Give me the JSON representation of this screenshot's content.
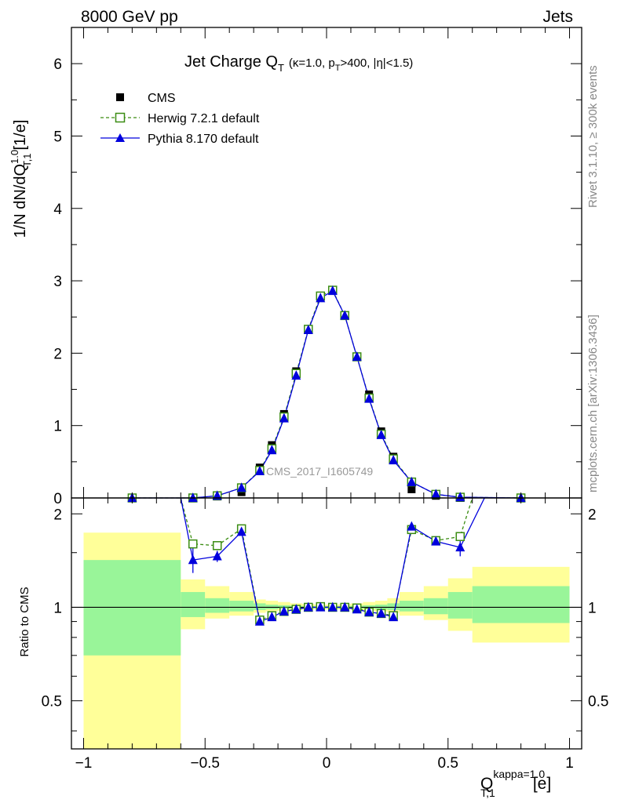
{
  "header": {
    "left": "8000 GeV pp",
    "right": "Jets"
  },
  "side_labels": {
    "rivet": "Rivet 3.1.10, ≥ 300k events",
    "mcplots": "mcplots.cern.ch [arXiv:1306.3436]"
  },
  "watermark": "CMS_2017_I1605749",
  "title": {
    "main": "Jet Charge Q",
    "main_sub": "T",
    "params_pre": "(κ=1.0, p",
    "params_sub": "T",
    "params_post": ">400, |η|<1.5)"
  },
  "axis_labels": {
    "y_main_prefix": "1/N dN/dQ",
    "y_main_sup": "1.0",
    "y_main_sub": "T,1",
    "y_main_suffix": "[1/e]",
    "y_ratio": "Ratio to CMS",
    "x_main": "Q",
    "x_sup": "kappa=1.0",
    "x_sub": "T,1",
    "x_unit": "[e]"
  },
  "legend": {
    "placement": "top-left",
    "entries": [
      {
        "label": "CMS",
        "marker": "filled-square"
      },
      {
        "label": "Herwig 7.2.1 default",
        "marker": "open-square-dashed"
      },
      {
        "label": "Pythia 8.170 default",
        "marker": "filled-triangle"
      }
    ]
  },
  "colors": {
    "cms": "#000000",
    "herwig": "#3a8c12",
    "pythia": "#0000dd",
    "band_inner": "#99f599",
    "band_outer": "#ffff99"
  },
  "chart_data": {
    "type": "line",
    "xlim": [
      -1.05,
      1.05
    ],
    "xticks": [
      "−1",
      "−0.5",
      "0",
      "0.5",
      "1"
    ],
    "xtick_values": [
      -1,
      -0.5,
      0,
      0.5,
      1
    ],
    "main": {
      "ylim": [
        0,
        6.5
      ],
      "yticks": [
        0,
        1,
        2,
        3,
        4,
        5,
        6
      ],
      "series": [
        {
          "name": "CMS",
          "x": [
            -0.8,
            -0.55,
            -0.45,
            -0.35,
            -0.275,
            -0.225,
            -0.175,
            -0.125,
            -0.075,
            -0.025,
            0.025,
            0.075,
            0.125,
            0.175,
            0.225,
            0.275,
            0.35,
            0.45,
            0.55,
            0.8
          ],
          "y": [
            0.0,
            0.0,
            0.02,
            0.08,
            0.42,
            0.73,
            1.16,
            1.75,
            2.33,
            2.78,
            2.87,
            2.52,
            1.95,
            1.43,
            0.92,
            0.57,
            0.12,
            0.03,
            0.0,
            0.0
          ]
        },
        {
          "name": "Herwig 7.2.1 default",
          "x": [
            -0.8,
            -0.55,
            -0.45,
            -0.35,
            -0.275,
            -0.225,
            -0.175,
            -0.125,
            -0.075,
            -0.025,
            0.025,
            0.075,
            0.125,
            0.175,
            0.225,
            0.275,
            0.35,
            0.45,
            0.55,
            0.8
          ],
          "y": [
            0.0,
            0.0,
            0.03,
            0.14,
            0.38,
            0.68,
            1.12,
            1.72,
            2.33,
            2.79,
            2.87,
            2.52,
            1.95,
            1.38,
            0.88,
            0.54,
            0.22,
            0.05,
            0.01,
            0.0
          ]
        },
        {
          "name": "Pythia 8.170 default",
          "x": [
            -0.8,
            -0.55,
            -0.45,
            -0.35,
            -0.275,
            -0.225,
            -0.175,
            -0.125,
            -0.075,
            -0.025,
            0.025,
            0.075,
            0.125,
            0.175,
            0.225,
            0.275,
            0.35,
            0.45,
            0.55,
            0.8
          ],
          "y": [
            0.0,
            0.0,
            0.03,
            0.14,
            0.37,
            0.66,
            1.1,
            1.69,
            2.32,
            2.76,
            2.86,
            2.52,
            1.95,
            1.37,
            0.87,
            0.52,
            0.22,
            0.05,
            0.01,
            0.0
          ]
        }
      ]
    },
    "ratio": {
      "ylim": [
        0.35,
        2.25
      ],
      "yticks": [
        0.5,
        1,
        2
      ],
      "ytick_labels": [
        "0.5",
        "1",
        "2"
      ],
      "reference": 1.0,
      "bands": [
        {
          "x0": -1.0,
          "x1": -0.6,
          "inner": [
            0.7,
            1.42
          ],
          "outer": [
            0.35,
            1.74
          ]
        },
        {
          "x0": -0.6,
          "x1": -0.5,
          "inner": [
            0.93,
            1.12
          ],
          "outer": [
            0.85,
            1.23
          ]
        },
        {
          "x0": -0.5,
          "x1": -0.4,
          "inner": [
            0.96,
            1.07
          ],
          "outer": [
            0.92,
            1.17
          ]
        },
        {
          "x0": -0.4,
          "x1": -0.3,
          "inner": [
            0.97,
            1.05
          ],
          "outer": [
            0.94,
            1.12
          ]
        },
        {
          "x0": -0.3,
          "x1": -0.25,
          "inner": [
            0.98,
            1.03
          ],
          "outer": [
            0.96,
            1.06
          ]
        },
        {
          "x0": -0.25,
          "x1": -0.2,
          "inner": [
            0.985,
            1.02
          ],
          "outer": [
            0.97,
            1.05
          ]
        },
        {
          "x0": -0.2,
          "x1": -0.15,
          "inner": [
            0.99,
            1.015
          ],
          "outer": [
            0.975,
            1.04
          ]
        },
        {
          "x0": -0.15,
          "x1": -0.1,
          "inner": [
            0.99,
            1.012
          ],
          "outer": [
            0.98,
            1.03
          ]
        },
        {
          "x0": -0.1,
          "x1": -0.05,
          "inner": [
            0.992,
            1.01
          ],
          "outer": [
            0.985,
            1.025
          ]
        },
        {
          "x0": -0.05,
          "x1": 0.0,
          "inner": [
            0.993,
            1.008
          ],
          "outer": [
            0.987,
            1.02
          ]
        },
        {
          "x0": 0.0,
          "x1": 0.05,
          "inner": [
            0.993,
            1.008
          ],
          "outer": [
            0.987,
            1.02
          ]
        },
        {
          "x0": 0.05,
          "x1": 0.1,
          "inner": [
            0.992,
            1.01
          ],
          "outer": [
            0.985,
            1.025
          ]
        },
        {
          "x0": 0.1,
          "x1": 0.15,
          "inner": [
            0.99,
            1.012
          ],
          "outer": [
            0.98,
            1.03
          ]
        },
        {
          "x0": 0.15,
          "x1": 0.2,
          "inner": [
            0.99,
            1.015
          ],
          "outer": [
            0.975,
            1.04
          ]
        },
        {
          "x0": 0.2,
          "x1": 0.25,
          "inner": [
            0.985,
            1.02
          ],
          "outer": [
            0.97,
            1.05
          ]
        },
        {
          "x0": 0.25,
          "x1": 0.3,
          "inner": [
            0.98,
            1.03
          ],
          "outer": [
            0.96,
            1.07
          ]
        },
        {
          "x0": 0.3,
          "x1": 0.4,
          "inner": [
            0.97,
            1.05
          ],
          "outer": [
            0.94,
            1.12
          ]
        },
        {
          "x0": 0.4,
          "x1": 0.5,
          "inner": [
            0.95,
            1.07
          ],
          "outer": [
            0.91,
            1.17
          ]
        },
        {
          "x0": 0.5,
          "x1": 0.6,
          "inner": [
            0.92,
            1.12
          ],
          "outer": [
            0.84,
            1.24
          ]
        },
        {
          "x0": 0.6,
          "x1": 1.0,
          "inner": [
            0.89,
            1.17
          ],
          "outer": [
            0.77,
            1.35
          ]
        }
      ],
      "series": [
        {
          "name": "Herwig 7.2.1 default",
          "x": [
            -0.55,
            -0.45,
            -0.35,
            -0.275,
            -0.225,
            -0.175,
            -0.125,
            -0.075,
            -0.025,
            0.025,
            0.075,
            0.125,
            0.175,
            0.225,
            0.275,
            0.35,
            0.45,
            0.55
          ],
          "y": [
            1.6,
            1.58,
            1.79,
            0.91,
            0.94,
            0.97,
            0.985,
            1.0,
            1.005,
            1.0,
            1.0,
            0.995,
            0.965,
            0.955,
            0.94,
            1.78,
            1.64,
            1.69
          ],
          "edge_left": {
            "x": -0.6,
            "y": 2.25
          },
          "edge_right": {
            "x": 0.6,
            "y": 2.25
          }
        },
        {
          "name": "Pythia 8.170 default",
          "x": [
            -0.55,
            -0.45,
            -0.35,
            -0.275,
            -0.225,
            -0.175,
            -0.125,
            -0.075,
            -0.025,
            0.025,
            0.075,
            0.125,
            0.175,
            0.225,
            0.275,
            0.35,
            0.45,
            0.55
          ],
          "y": [
            1.42,
            1.46,
            1.75,
            0.9,
            0.93,
            0.97,
            0.985,
            1.0,
            1.0,
            1.0,
            1.0,
            0.985,
            0.965,
            0.955,
            0.93,
            1.82,
            1.63,
            1.56
          ],
          "yerr": [
            0.13,
            0.06,
            0.04,
            0.01,
            0.01,
            0.01,
            0.01,
            0.01,
            0.01,
            0.01,
            0.01,
            0.01,
            0.01,
            0.01,
            0.01,
            0.04,
            0.04,
            0.1
          ],
          "edge_left": {
            "x": -0.6,
            "y": 2.25
          },
          "edge_right": {
            "x": 0.65,
            "y": 2.25
          }
        }
      ]
    }
  }
}
